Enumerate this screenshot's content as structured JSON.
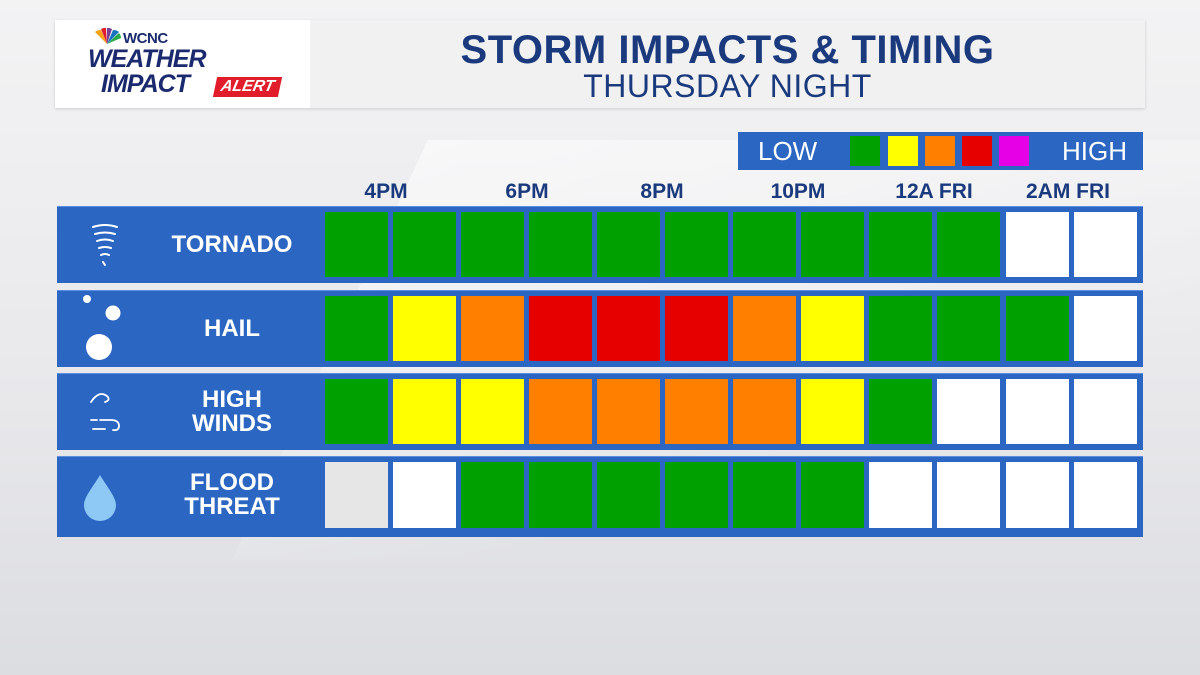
{
  "header": {
    "station": "WCNC",
    "brand_line1": "WEATHER",
    "brand_line2": "IMPACT",
    "brand_alert": "ALERT",
    "title": "STORM IMPACTS & TIMING",
    "subtitle": "THURSDAY NIGHT"
  },
  "legend": {
    "low_label": "LOW",
    "high_label": "HIGH",
    "colors": [
      "#00a000",
      "#ffff00",
      "#ff8000",
      "#e60000",
      "#e600e6"
    ]
  },
  "time_labels": [
    "4PM",
    "6PM",
    "8PM",
    "10PM",
    "12A FRI",
    "2AM FRI"
  ],
  "levels": {
    "none": "#ffffff",
    "na": "#e6e6e6",
    "low": "#00a000",
    "minor": "#ffff00",
    "moderate": "#ff8000",
    "high": "#e60000",
    "extreme": "#e600e6"
  },
  "rows": [
    {
      "label": "TORNADO",
      "icon": "tornado-icon",
      "cells": [
        "low",
        "low",
        "low",
        "low",
        "low",
        "low",
        "low",
        "low",
        "low",
        "low",
        "none",
        "none"
      ]
    },
    {
      "label": "HAIL",
      "icon": "hail-icon",
      "cells": [
        "low",
        "minor",
        "moderate",
        "high",
        "high",
        "high",
        "moderate",
        "minor",
        "low",
        "low",
        "low",
        "none"
      ]
    },
    {
      "label": "HIGH\nWINDS",
      "icon": "wind-icon",
      "cells": [
        "low",
        "minor",
        "minor",
        "moderate",
        "moderate",
        "moderate",
        "moderate",
        "minor",
        "low",
        "none",
        "none",
        "none"
      ]
    },
    {
      "label": "FLOOD\nTHREAT",
      "icon": "raindrop-icon",
      "cells": [
        "na",
        "none",
        "low",
        "low",
        "low",
        "low",
        "low",
        "low",
        "none",
        "none",
        "none",
        "none"
      ]
    }
  ]
}
